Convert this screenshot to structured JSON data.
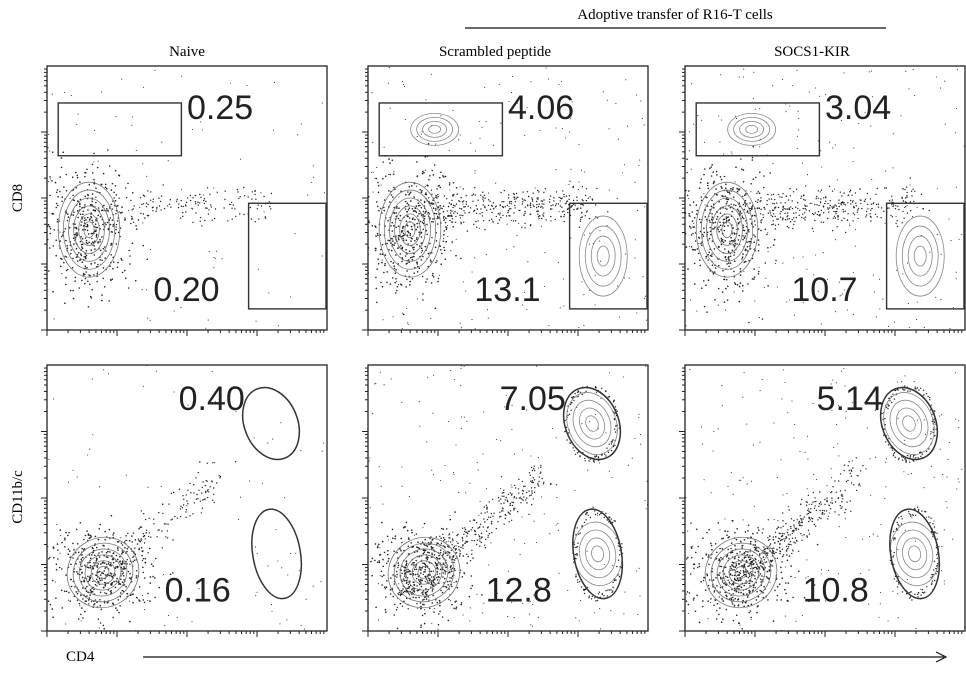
{
  "header": {
    "group_label": "Adoptive transfer of R16-T cells"
  },
  "axes": {
    "x_label": "CD4",
    "row_labels": [
      "CD8",
      "CD11b/c"
    ]
  },
  "chart_data": {
    "type": "scatter",
    "title": "",
    "column_titles": [
      "Naive",
      "Scrambled peptide",
      "SOCS1-KIR"
    ],
    "group_label": "Adoptive transfer of R16-T cells",
    "x_label": "CD4",
    "x_scale": "log",
    "y_scale": "log",
    "grid": false,
    "rows": [
      {
        "y_label": "CD8",
        "gates": [
          {
            "name": "CD8 gate",
            "shape": "rectangle"
          },
          {
            "name": "CD4 gate",
            "shape": "rectangle"
          }
        ],
        "panels": [
          {
            "column": "Naive",
            "values": [
              "0.25",
              "0.20"
            ]
          },
          {
            "column": "Scrambled peptide",
            "values": [
              "4.06",
              "13.1"
            ]
          },
          {
            "column": "SOCS1-KIR",
            "values": [
              "3.04",
              "10.7"
            ]
          }
        ]
      },
      {
        "y_label": "CD11b/c",
        "gates": [
          {
            "name": "upper gate",
            "shape": "ellipse"
          },
          {
            "name": "lower gate",
            "shape": "ellipse"
          }
        ],
        "panels": [
          {
            "column": "Naive",
            "values": [
              "0.40",
              "0.16"
            ]
          },
          {
            "column": "Scrambled peptide",
            "values": [
              "7.05",
              "12.8"
            ]
          },
          {
            "column": "SOCS1-KIR",
            "values": [
              "5.14",
              "10.8"
            ]
          }
        ]
      }
    ]
  }
}
